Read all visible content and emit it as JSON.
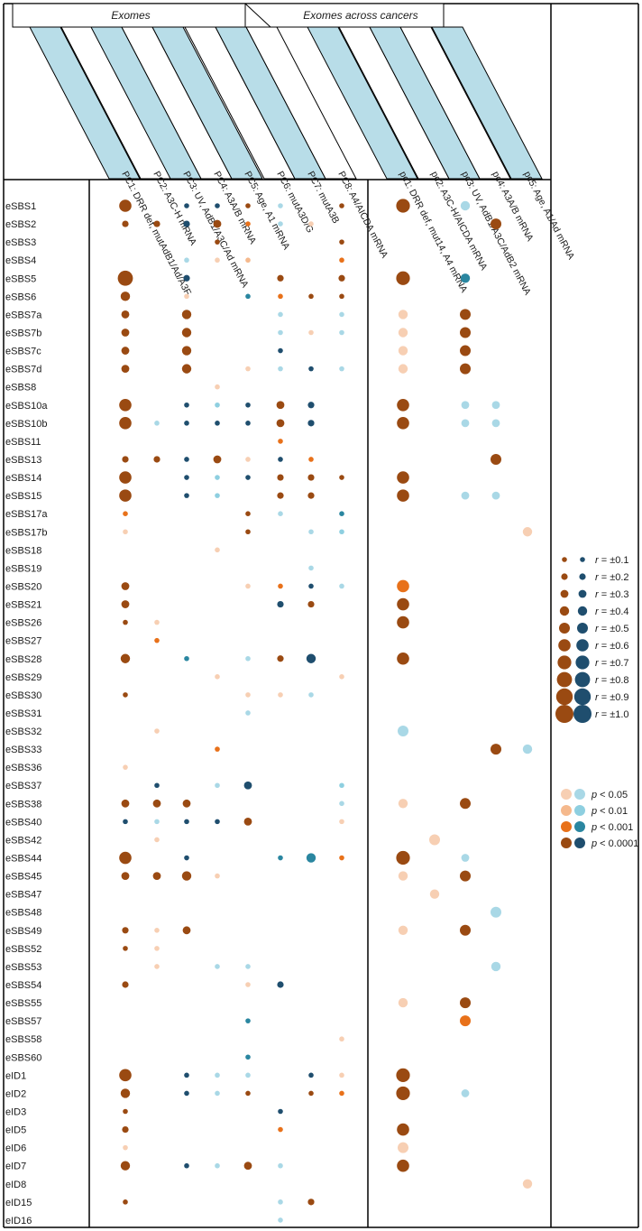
{
  "colors": {
    "pos": [
      "#f7cfb3",
      "#f5b98d",
      "#e8711a",
      "#9a4a12"
    ],
    "neg": [
      "#a9d8e6",
      "#8ecfe0",
      "#2a86a0",
      "#1f4e6e"
    ],
    "header_band": "#b8dde8"
  },
  "legend": {
    "r_labels": [
      "±0.1",
      "±0.2",
      "±0.3",
      "±0.4",
      "±0.5",
      "±0.6",
      "±0.7",
      "±0.8",
      "±0.9",
      "±1.0"
    ],
    "r_prefix": "r = ",
    "p_prefix": "p < ",
    "p_labels": [
      "0.05",
      "0.01",
      "0.001",
      "0.0001"
    ]
  },
  "chart_data": {
    "type": "scatter",
    "title": "",
    "groups": [
      {
        "label": "Exomes",
        "columns": 8
      },
      {
        "label": "Exomes across cancers",
        "columns": 5
      }
    ],
    "columns": [
      "PC1: DRR def, mutAdB1/Ad/A3F",
      "PC2: A3C-H mRNA",
      "PC3: UV, AdB1/A3C/Ad mRNA",
      "PC4: A3A/B mRNA",
      "PC5: Age, A1 mRNA",
      "PC6: mutA3D/G",
      "PC7: mutA3B",
      "PC8: A4/AICDA mRNA",
      "pc1: DRR def, mut14, A4 mRNA",
      "pc2: A3C-H/AICDA mRNA",
      "pc3: UV, AdB1/A3C/AdB2 mRNA",
      "pc4: A3A/B mRNA",
      "pc5: Age, A1/Ad mRNA"
    ],
    "rows": [
      "eSBS1",
      "eSBS2",
      "eSBS3",
      "eSBS4",
      "eSBS5",
      "eSBS6",
      "eSBS7a",
      "eSBS7b",
      "eSBS7c",
      "eSBS7d",
      "eSBS8",
      "eSBS10a",
      "eSBS10b",
      "eSBS11",
      "eSBS13",
      "eSBS14",
      "eSBS15",
      "eSBS17a",
      "eSBS17b",
      "eSBS18",
      "eSBS19",
      "eSBS20",
      "eSBS21",
      "eSBS26",
      "eSBS27",
      "eSBS28",
      "eSBS29",
      "eSBS30",
      "eSBS31",
      "eSBS32",
      "eSBS33",
      "eSBS36",
      "eSBS37",
      "eSBS38",
      "eSBS40",
      "eSBS42",
      "eSBS44",
      "eSBS45",
      "eSBS47",
      "eSBS48",
      "eSBS49",
      "eSBS52",
      "eSBS53",
      "eSBS54",
      "eSBS55",
      "eSBS57",
      "eSBS58",
      "eSBS60",
      "eID1",
      "eID2",
      "eID3",
      "eID5",
      "eID6",
      "eID7",
      "eID8",
      "eID15",
      "eID16"
    ],
    "points_note": "each point: [row, column, r, p_level] ; p_level 1:<0.05, 2:<0.01, 3:<0.001, 4:<0.0001",
    "points": [
      [
        "eSBS1",
        0,
        0.6,
        4
      ],
      [
        "eSBS1",
        2,
        -0.1,
        4
      ],
      [
        "eSBS1",
        3,
        -0.1,
        4
      ],
      [
        "eSBS1",
        4,
        0.1,
        4
      ],
      [
        "eSBS1",
        5,
        -0.1,
        1
      ],
      [
        "eSBS1",
        7,
        0.1,
        4
      ],
      [
        "eSBS1",
        8,
        0.7,
        4
      ],
      [
        "eSBS1",
        10,
        -0.4,
        1
      ],
      [
        "eSBS2",
        0,
        0.2,
        4
      ],
      [
        "eSBS2",
        1,
        0.2,
        4
      ],
      [
        "eSBS2",
        2,
        -0.2,
        4
      ],
      [
        "eSBS2",
        3,
        0.3,
        4
      ],
      [
        "eSBS2",
        4,
        0.1,
        3
      ],
      [
        "eSBS2",
        5,
        -0.1,
        1
      ],
      [
        "eSBS2",
        6,
        0.1,
        1
      ],
      [
        "eSBS2",
        11,
        0.5,
        4
      ],
      [
        "eSBS3",
        3,
        0.1,
        4
      ],
      [
        "eSBS3",
        7,
        0.1,
        4
      ],
      [
        "eSBS4",
        2,
        -0.1,
        1
      ],
      [
        "eSBS4",
        3,
        0.1,
        1
      ],
      [
        "eSBS4",
        4,
        0.1,
        2
      ],
      [
        "eSBS4",
        7,
        0.1,
        3
      ],
      [
        "eSBS5",
        0,
        0.8,
        4
      ],
      [
        "eSBS5",
        2,
        -0.2,
        4
      ],
      [
        "eSBS5",
        5,
        0.2,
        4
      ],
      [
        "eSBS5",
        7,
        0.2,
        4
      ],
      [
        "eSBS5",
        8,
        0.7,
        4
      ],
      [
        "eSBS5",
        10,
        -0.4,
        3
      ],
      [
        "eSBS6",
        0,
        0.4,
        4
      ],
      [
        "eSBS6",
        2,
        0.1,
        1
      ],
      [
        "eSBS6",
        4,
        -0.1,
        3
      ],
      [
        "eSBS6",
        5,
        0.1,
        3
      ],
      [
        "eSBS6",
        6,
        0.1,
        4
      ],
      [
        "eSBS6",
        7,
        0.1,
        4
      ],
      [
        "eSBS7a",
        0,
        0.3,
        4
      ],
      [
        "eSBS7a",
        2,
        0.4,
        4
      ],
      [
        "eSBS7a",
        5,
        -0.1,
        1
      ],
      [
        "eSBS7a",
        7,
        -0.1,
        1
      ],
      [
        "eSBS7a",
        8,
        0.4,
        1
      ],
      [
        "eSBS7a",
        10,
        0.5,
        4
      ],
      [
        "eSBS7b",
        0,
        0.3,
        4
      ],
      [
        "eSBS7b",
        2,
        0.4,
        4
      ],
      [
        "eSBS7b",
        5,
        -0.1,
        1
      ],
      [
        "eSBS7b",
        6,
        0.1,
        1
      ],
      [
        "eSBS7b",
        7,
        -0.1,
        1
      ],
      [
        "eSBS7b",
        8,
        0.4,
        1
      ],
      [
        "eSBS7b",
        10,
        0.5,
        4
      ],
      [
        "eSBS7c",
        0,
        0.3,
        4
      ],
      [
        "eSBS7c",
        2,
        0.4,
        4
      ],
      [
        "eSBS7c",
        5,
        -0.1,
        4
      ],
      [
        "eSBS7c",
        8,
        0.4,
        1
      ],
      [
        "eSBS7c",
        10,
        0.5,
        4
      ],
      [
        "eSBS7d",
        0,
        0.3,
        4
      ],
      [
        "eSBS7d",
        2,
        0.4,
        4
      ],
      [
        "eSBS7d",
        4,
        0.1,
        1
      ],
      [
        "eSBS7d",
        5,
        -0.1,
        1
      ],
      [
        "eSBS7d",
        6,
        -0.1,
        4
      ],
      [
        "eSBS7d",
        7,
        -0.1,
        1
      ],
      [
        "eSBS7d",
        8,
        0.4,
        1
      ],
      [
        "eSBS7d",
        10,
        0.5,
        4
      ],
      [
        "eSBS8",
        3,
        0.1,
        1
      ],
      [
        "eSBS10a",
        0,
        0.6,
        4
      ],
      [
        "eSBS10a",
        2,
        -0.1,
        4
      ],
      [
        "eSBS10a",
        3,
        -0.1,
        2
      ],
      [
        "eSBS10a",
        4,
        -0.1,
        4
      ],
      [
        "eSBS10a",
        5,
        0.3,
        4
      ],
      [
        "eSBS10a",
        6,
        -0.2,
        4
      ],
      [
        "eSBS10a",
        8,
        0.6,
        4
      ],
      [
        "eSBS10a",
        10,
        -0.3,
        1
      ],
      [
        "eSBS10a",
        11,
        -0.3,
        1
      ],
      [
        "eSBS10b",
        0,
        0.6,
        4
      ],
      [
        "eSBS10b",
        1,
        -0.1,
        1
      ],
      [
        "eSBS10b",
        2,
        -0.1,
        4
      ],
      [
        "eSBS10b",
        3,
        -0.1,
        4
      ],
      [
        "eSBS10b",
        4,
        -0.1,
        4
      ],
      [
        "eSBS10b",
        5,
        0.3,
        4
      ],
      [
        "eSBS10b",
        6,
        -0.2,
        4
      ],
      [
        "eSBS10b",
        8,
        0.6,
        4
      ],
      [
        "eSBS10b",
        10,
        -0.3,
        1
      ],
      [
        "eSBS10b",
        11,
        -0.3,
        1
      ],
      [
        "eSBS11",
        5,
        0.1,
        3
      ],
      [
        "eSBS13",
        0,
        0.2,
        4
      ],
      [
        "eSBS13",
        1,
        0.2,
        4
      ],
      [
        "eSBS13",
        2,
        -0.1,
        4
      ],
      [
        "eSBS13",
        3,
        0.3,
        4
      ],
      [
        "eSBS13",
        4,
        0.1,
        1
      ],
      [
        "eSBS13",
        5,
        -0.1,
        4
      ],
      [
        "eSBS13",
        6,
        0.1,
        3
      ],
      [
        "eSBS13",
        11,
        0.5,
        4
      ],
      [
        "eSBS14",
        0,
        0.6,
        4
      ],
      [
        "eSBS14",
        2,
        -0.1,
        4
      ],
      [
        "eSBS14",
        3,
        -0.1,
        2
      ],
      [
        "eSBS14",
        4,
        -0.1,
        4
      ],
      [
        "eSBS14",
        5,
        0.2,
        4
      ],
      [
        "eSBS14",
        6,
        0.2,
        4
      ],
      [
        "eSBS14",
        7,
        0.1,
        4
      ],
      [
        "eSBS14",
        8,
        0.6,
        4
      ],
      [
        "eSBS15",
        0,
        0.6,
        4
      ],
      [
        "eSBS15",
        2,
        -0.1,
        4
      ],
      [
        "eSBS15",
        3,
        -0.1,
        2
      ],
      [
        "eSBS15",
        5,
        0.2,
        4
      ],
      [
        "eSBS15",
        6,
        0.2,
        4
      ],
      [
        "eSBS15",
        8,
        0.6,
        4
      ],
      [
        "eSBS15",
        10,
        -0.3,
        1
      ],
      [
        "eSBS15",
        11,
        -0.3,
        1
      ],
      [
        "eSBS17a",
        0,
        0.1,
        3
      ],
      [
        "eSBS17a",
        4,
        0.1,
        4
      ],
      [
        "eSBS17a",
        5,
        -0.1,
        1
      ],
      [
        "eSBS17a",
        7,
        -0.1,
        3
      ],
      [
        "eSBS17b",
        0,
        0.1,
        1
      ],
      [
        "eSBS17b",
        4,
        0.1,
        4
      ],
      [
        "eSBS17b",
        6,
        -0.1,
        1
      ],
      [
        "eSBS17b",
        7,
        -0.1,
        2
      ],
      [
        "eSBS17b",
        12,
        0.4,
        1
      ],
      [
        "eSBS18",
        3,
        0.1,
        1
      ],
      [
        "eSBS19",
        6,
        -0.1,
        1
      ],
      [
        "eSBS20",
        0,
        0.3,
        4
      ],
      [
        "eSBS20",
        4,
        0.1,
        1
      ],
      [
        "eSBS20",
        5,
        0.1,
        3
      ],
      [
        "eSBS20",
        6,
        -0.1,
        4
      ],
      [
        "eSBS20",
        7,
        -0.1,
        1
      ],
      [
        "eSBS20",
        8,
        0.6,
        3
      ],
      [
        "eSBS21",
        0,
        0.3,
        4
      ],
      [
        "eSBS21",
        5,
        -0.2,
        4
      ],
      [
        "eSBS21",
        6,
        0.2,
        4
      ],
      [
        "eSBS21",
        8,
        0.6,
        4
      ],
      [
        "eSBS26",
        0,
        0.1,
        4
      ],
      [
        "eSBS26",
        1,
        0.1,
        1
      ],
      [
        "eSBS26",
        8,
        0.6,
        4
      ],
      [
        "eSBS27",
        1,
        0.1,
        3
      ],
      [
        "eSBS28",
        0,
        0.4,
        4
      ],
      [
        "eSBS28",
        2,
        -0.1,
        3
      ],
      [
        "eSBS28",
        4,
        -0.1,
        1
      ],
      [
        "eSBS28",
        5,
        0.2,
        4
      ],
      [
        "eSBS28",
        6,
        -0.4,
        4
      ],
      [
        "eSBS28",
        8,
        0.6,
        4
      ],
      [
        "eSBS29",
        3,
        0.1,
        1
      ],
      [
        "eSBS29",
        7,
        0.1,
        1
      ],
      [
        "eSBS30",
        0,
        0.1,
        4
      ],
      [
        "eSBS30",
        4,
        0.1,
        1
      ],
      [
        "eSBS30",
        5,
        0.1,
        1
      ],
      [
        "eSBS30",
        6,
        -0.1,
        1
      ],
      [
        "eSBS31",
        4,
        -0.1,
        1
      ],
      [
        "eSBS32",
        1,
        0.1,
        1
      ],
      [
        "eSBS32",
        8,
        -0.5,
        1
      ],
      [
        "eSBS33",
        3,
        0.1,
        3
      ],
      [
        "eSBS33",
        11,
        0.5,
        4
      ],
      [
        "eSBS33",
        12,
        -0.4,
        1
      ],
      [
        "eSBS36",
        0,
        0.1,
        1
      ],
      [
        "eSBS37",
        1,
        -0.1,
        4
      ],
      [
        "eSBS37",
        3,
        -0.1,
        1
      ],
      [
        "eSBS37",
        4,
        -0.3,
        4
      ],
      [
        "eSBS37",
        7,
        -0.1,
        2
      ],
      [
        "eSBS38",
        0,
        0.3,
        4
      ],
      [
        "eSBS38",
        1,
        0.3,
        4
      ],
      [
        "eSBS38",
        2,
        0.3,
        4
      ],
      [
        "eSBS38",
        7,
        -0.1,
        1
      ],
      [
        "eSBS38",
        8,
        0.4,
        1
      ],
      [
        "eSBS38",
        10,
        0.5,
        4
      ],
      [
        "eSBS40",
        0,
        -0.1,
        4
      ],
      [
        "eSBS40",
        1,
        -0.1,
        1
      ],
      [
        "eSBS40",
        2,
        -0.1,
        4
      ],
      [
        "eSBS40",
        3,
        -0.1,
        4
      ],
      [
        "eSBS40",
        4,
        0.3,
        4
      ],
      [
        "eSBS40",
        7,
        0.1,
        1
      ],
      [
        "eSBS42",
        1,
        0.1,
        1
      ],
      [
        "eSBS42",
        9,
        0.5,
        1
      ],
      [
        "eSBS44",
        0,
        0.6,
        4
      ],
      [
        "eSBS44",
        2,
        -0.1,
        4
      ],
      [
        "eSBS44",
        5,
        -0.1,
        3
      ],
      [
        "eSBS44",
        6,
        -0.4,
        3
      ],
      [
        "eSBS44",
        7,
        0.1,
        3
      ],
      [
        "eSBS44",
        8,
        0.7,
        4
      ],
      [
        "eSBS44",
        10,
        -0.3,
        1
      ],
      [
        "eSBS45",
        0,
        0.3,
        4
      ],
      [
        "eSBS45",
        1,
        0.3,
        4
      ],
      [
        "eSBS45",
        2,
        0.4,
        4
      ],
      [
        "eSBS45",
        3,
        0.1,
        1
      ],
      [
        "eSBS45",
        8,
        0.4,
        1
      ],
      [
        "eSBS45",
        10,
        0.5,
        4
      ],
      [
        "eSBS47",
        9,
        0.4,
        1
      ],
      [
        "eSBS48",
        11,
        -0.5,
        1
      ],
      [
        "eSBS49",
        0,
        0.2,
        4
      ],
      [
        "eSBS49",
        1,
        0.1,
        1
      ],
      [
        "eSBS49",
        2,
        0.3,
        4
      ],
      [
        "eSBS49",
        8,
        0.4,
        1
      ],
      [
        "eSBS49",
        10,
        0.5,
        4
      ],
      [
        "eSBS52",
        0,
        0.1,
        4
      ],
      [
        "eSBS52",
        1,
        0.1,
        1
      ],
      [
        "eSBS53",
        1,
        0.1,
        1
      ],
      [
        "eSBS53",
        3,
        -0.1,
        1
      ],
      [
        "eSBS53",
        4,
        -0.1,
        1
      ],
      [
        "eSBS53",
        11,
        -0.4,
        1
      ],
      [
        "eSBS54",
        0,
        0.2,
        4
      ],
      [
        "eSBS54",
        4,
        0.1,
        1
      ],
      [
        "eSBS54",
        5,
        -0.2,
        4
      ],
      [
        "eSBS55",
        8,
        0.4,
        1
      ],
      [
        "eSBS55",
        10,
        0.5,
        4
      ],
      [
        "eSBS57",
        4,
        -0.1,
        3
      ],
      [
        "eSBS57",
        10,
        0.5,
        3
      ],
      [
        "eSBS58",
        7,
        0.1,
        1
      ],
      [
        "eSBS60",
        4,
        -0.1,
        3
      ],
      [
        "eID1",
        0,
        0.6,
        4
      ],
      [
        "eID1",
        2,
        -0.1,
        4
      ],
      [
        "eID1",
        3,
        -0.1,
        1
      ],
      [
        "eID1",
        4,
        -0.1,
        1
      ],
      [
        "eID1",
        6,
        -0.1,
        4
      ],
      [
        "eID1",
        7,
        0.1,
        1
      ],
      [
        "eID1",
        8,
        0.7,
        4
      ],
      [
        "eID2",
        0,
        0.4,
        4
      ],
      [
        "eID2",
        2,
        -0.1,
        4
      ],
      [
        "eID2",
        3,
        -0.1,
        1
      ],
      [
        "eID2",
        4,
        0.1,
        4
      ],
      [
        "eID2",
        6,
        0.1,
        4
      ],
      [
        "eID2",
        7,
        0.1,
        3
      ],
      [
        "eID2",
        8,
        0.7,
        4
      ],
      [
        "eID2",
        10,
        -0.3,
        1
      ],
      [
        "eID3",
        0,
        0.1,
        4
      ],
      [
        "eID3",
        5,
        -0.1,
        4
      ],
      [
        "eID5",
        0,
        0.2,
        4
      ],
      [
        "eID5",
        5,
        0.1,
        3
      ],
      [
        "eID5",
        8,
        0.6,
        4
      ],
      [
        "eID6",
        0,
        0.1,
        1
      ],
      [
        "eID6",
        8,
        0.5,
        1
      ],
      [
        "eID7",
        0,
        0.4,
        4
      ],
      [
        "eID7",
        2,
        -0.1,
        4
      ],
      [
        "eID7",
        3,
        -0.1,
        1
      ],
      [
        "eID7",
        4,
        0.3,
        4
      ],
      [
        "eID7",
        5,
        -0.1,
        1
      ],
      [
        "eID7",
        8,
        0.6,
        4
      ],
      [
        "eID8",
        12,
        0.4,
        1
      ],
      [
        "eID15",
        0,
        0.1,
        4
      ],
      [
        "eID15",
        5,
        -0.1,
        1
      ],
      [
        "eID15",
        6,
        0.2,
        4
      ],
      [
        "eID16",
        5,
        -0.1,
        1
      ]
    ]
  }
}
